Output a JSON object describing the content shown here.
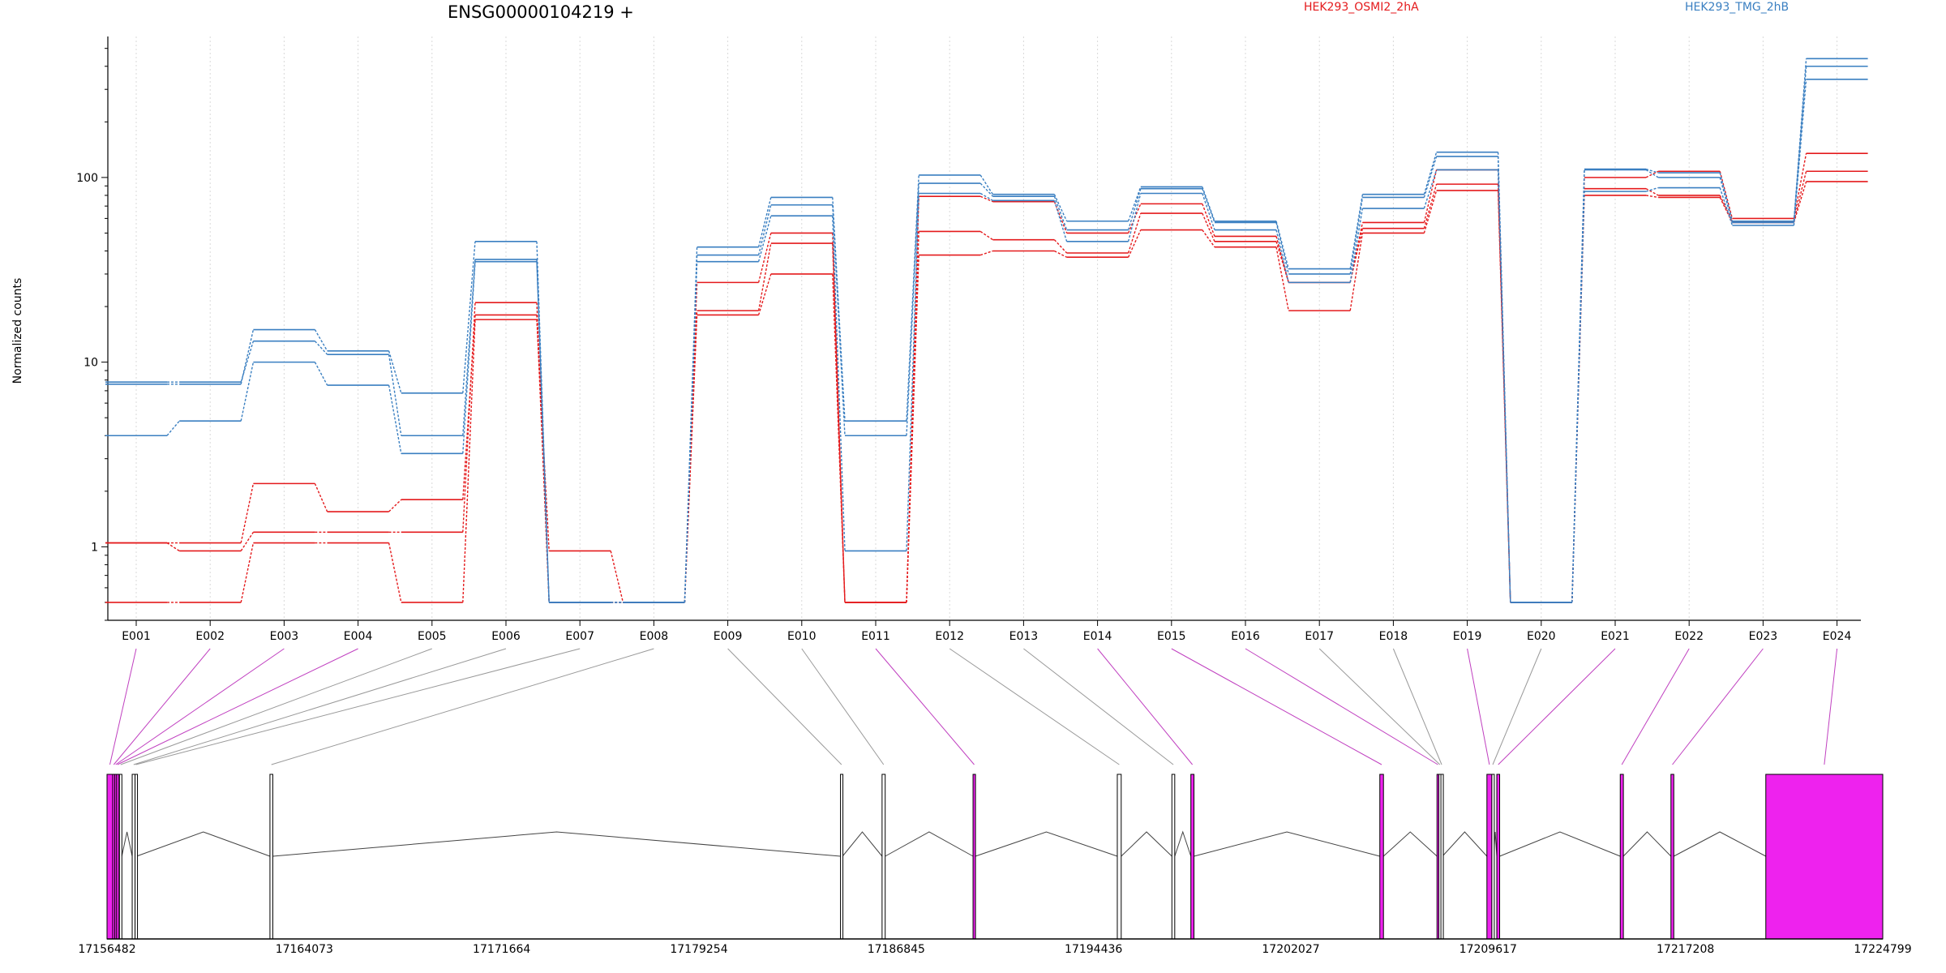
{
  "chart_data": {
    "type": "line",
    "title": "ENSG00000104219 +",
    "ylabel": "Normalized counts",
    "xlabel": "",
    "y_scale": "log",
    "ylim": [
      0.4,
      580
    ],
    "grid": "vertical-dotted",
    "legend_placement": "top",
    "y_ticks": [
      {
        "value": 1,
        "label": "1"
      },
      {
        "value": 10,
        "label": "10"
      },
      {
        "value": 100,
        "label": "100"
      }
    ],
    "categories": [
      "E001",
      "E002",
      "E003",
      "E004",
      "E005",
      "E006",
      "E007",
      "E008",
      "E009",
      "E010",
      "E011",
      "E012",
      "E013",
      "E014",
      "E015",
      "E016",
      "E017",
      "E018",
      "E019",
      "E020",
      "E021",
      "E022",
      "E023",
      "E024"
    ],
    "series": [
      {
        "name": "HEK293_OSMI2_2hA",
        "color": "#e41a1c",
        "samples": [
          [
            0.5,
            0.5,
            1.05,
            1.05,
            0.5,
            17,
            0.95,
            0.5,
            18,
            30,
            0.5,
            38,
            40,
            37,
            52,
            42,
            19,
            50,
            85,
            0.5,
            80,
            78,
            57,
            95
          ],
          [
            1.05,
            1.05,
            2.2,
            1.55,
            1.8,
            18,
            0.5,
            0.5,
            19,
            44,
            0.5,
            51,
            46,
            39,
            64,
            45,
            27,
            53,
            92,
            0.5,
            87,
            80,
            58,
            108
          ],
          [
            1.05,
            0.95,
            1.2,
            1.2,
            1.2,
            21,
            0.5,
            0.5,
            27,
            50,
            0.5,
            79,
            74,
            50,
            72,
            48,
            27,
            57,
            110,
            0.5,
            100,
            108,
            60,
            135
          ]
        ]
      },
      {
        "name": "HEK293_TMG_2hB",
        "color": "#3a7fc1",
        "samples": [
          [
            4,
            4.8,
            10,
            7.5,
            3.2,
            35,
            0.5,
            0.5,
            35,
            62,
            0.95,
            82,
            75,
            45,
            82,
            52,
            27,
            68,
            110,
            0.5,
            84,
            88,
            55,
            340
          ],
          [
            7.8,
            7.8,
            13,
            11,
            4,
            36,
            0.5,
            0.5,
            38,
            71,
            4,
            93,
            79,
            52,
            87,
            57,
            30,
            78,
            130,
            0.5,
            110,
            100,
            57,
            400
          ],
          [
            7.6,
            7.6,
            15,
            11.5,
            6.8,
            45,
            0.5,
            0.5,
            42,
            78,
            4.8,
            103,
            81,
            58,
            89,
            58,
            32,
            81,
            137,
            0.5,
            111,
            106,
            58,
            440
          ]
        ]
      }
    ],
    "gene_model": {
      "ticks": [
        "17156482",
        "17164073",
        "17171664",
        "17179254",
        "17186845",
        "17194436",
        "17202027",
        "17209617",
        "17217208",
        "17224799"
      ],
      "range": [
        17156482,
        17224799
      ],
      "highlight_color": "#ee22ee",
      "exons": [
        {
          "id": "E001",
          "start": 17156482,
          "end": 17156700,
          "highlighted": true
        },
        {
          "id": "E002",
          "start": 17156700,
          "end": 17156780,
          "highlighted": true
        },
        {
          "id": "E003",
          "start": 17156780,
          "end": 17156850,
          "highlighted": true
        },
        {
          "id": "E004",
          "start": 17156850,
          "end": 17156910,
          "highlighted": true
        },
        {
          "id": "E005",
          "start": 17156960,
          "end": 17157050,
          "highlighted": false
        },
        {
          "id": "E006",
          "start": 17157450,
          "end": 17157560,
          "highlighted": false
        },
        {
          "id": "E007",
          "start": 17157560,
          "end": 17157620,
          "highlighted": false
        },
        {
          "id": "E008",
          "start": 17162750,
          "end": 17162860,
          "highlighted": false
        },
        {
          "id": "E009",
          "start": 17184700,
          "end": 17184780,
          "highlighted": false
        },
        {
          "id": "E010",
          "start": 17186300,
          "end": 17186420,
          "highlighted": false
        },
        {
          "id": "E011",
          "start": 17189800,
          "end": 17189890,
          "highlighted": true
        },
        {
          "id": "E012",
          "start": 17195350,
          "end": 17195500,
          "highlighted": false
        },
        {
          "id": "E013",
          "start": 17197450,
          "end": 17197560,
          "highlighted": false
        },
        {
          "id": "E014",
          "start": 17198180,
          "end": 17198300,
          "highlighted": true
        },
        {
          "id": "E015",
          "start": 17205450,
          "end": 17205590,
          "highlighted": true
        },
        {
          "id": "E016",
          "start": 17207650,
          "end": 17207720,
          "highlighted": true
        },
        {
          "id": "E017",
          "start": 17207720,
          "end": 17207800,
          "highlighted": false
        },
        {
          "id": "E018",
          "start": 17207800,
          "end": 17207860,
          "highlighted": false
        },
        {
          "id": "E019",
          "start": 17209570,
          "end": 17209760,
          "highlighted": true
        },
        {
          "id": "E020",
          "start": 17209760,
          "end": 17209830,
          "highlighted": false
        },
        {
          "id": "E021",
          "start": 17209950,
          "end": 17210060,
          "highlighted": true
        },
        {
          "id": "E022",
          "start": 17214700,
          "end": 17214820,
          "highlighted": true
        },
        {
          "id": "E023",
          "start": 17216650,
          "end": 17216760,
          "highlighted": true
        },
        {
          "id": "E024",
          "start": 17220300,
          "end": 17224799,
          "highlighted": true
        }
      ]
    }
  }
}
